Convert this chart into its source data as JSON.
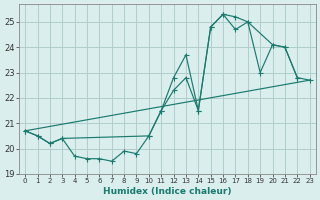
{
  "xlabel": "Humidex (Indice chaleur)",
  "bg_color": "#daeeed",
  "grid_color": "#b0cccb",
  "line_color": "#1a7a6e",
  "xlim": [
    -0.5,
    23.5
  ],
  "ylim": [
    19.0,
    25.7
  ],
  "yticks": [
    19,
    20,
    21,
    22,
    23,
    24,
    25
  ],
  "xticks": [
    0,
    1,
    2,
    3,
    4,
    5,
    6,
    7,
    8,
    9,
    10,
    11,
    12,
    13,
    14,
    15,
    16,
    17,
    18,
    19,
    20,
    21,
    22,
    23
  ],
  "curve1_x": [
    0,
    1,
    2,
    3,
    4,
    5,
    6,
    7,
    8,
    9,
    10,
    11,
    12,
    13,
    14,
    15,
    16,
    17,
    18,
    20,
    21,
    22
  ],
  "curve1_y": [
    20.7,
    20.5,
    20.2,
    20.4,
    19.7,
    19.6,
    19.6,
    19.5,
    19.9,
    19.8,
    20.5,
    21.5,
    22.8,
    23.7,
    21.5,
    24.8,
    25.3,
    25.2,
    25.0,
    24.1,
    24.0,
    22.8
  ],
  "curve2_x": [
    0,
    1,
    2,
    3,
    10,
    11,
    12,
    13,
    14,
    15,
    16,
    17,
    18,
    19,
    20,
    21,
    22,
    23
  ],
  "curve2_y": [
    20.7,
    20.5,
    20.2,
    20.4,
    20.5,
    21.5,
    22.3,
    22.8,
    21.5,
    24.8,
    25.3,
    24.7,
    25.0,
    23.0,
    24.1,
    24.0,
    22.8,
    22.7
  ],
  "curve3_x": [
    0,
    23
  ],
  "curve3_y": [
    20.7,
    22.7
  ]
}
